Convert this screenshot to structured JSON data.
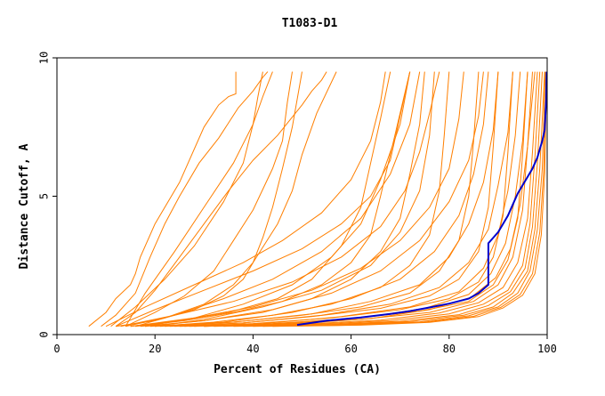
{
  "chart_data": {
    "type": "line",
    "title": "T1083-D1",
    "xlabel": "Percent of Residues (CA)",
    "ylabel": "Distance Cutoff, A",
    "xlim": [
      0,
      100
    ],
    "ylim": [
      0,
      10
    ],
    "x_ticks": [
      {
        "value": 0,
        "label": "0"
      },
      {
        "value": 20,
        "label": "20"
      },
      {
        "value": 40,
        "label": "40"
      },
      {
        "value": 60,
        "label": "60"
      },
      {
        "value": 80,
        "label": "80"
      },
      {
        "value": 100,
        "label": "100"
      }
    ],
    "y_ticks": [
      {
        "value": 0,
        "label": "0"
      },
      {
        "value": 5,
        "label": "5"
      },
      {
        "value": 10,
        "label": "10"
      }
    ],
    "grid": false,
    "colors": {
      "background_series": "#ff7f00",
      "highlight_series": "#0000cc",
      "axis": "#000000"
    },
    "series": [
      {
        "x": [
          6.5,
          10,
          12,
          15,
          16,
          17,
          20,
          25,
          30,
          33,
          35,
          36.5,
          36.5
        ],
        "y": [
          0.3,
          0.8,
          1.3,
          1.8,
          2.2,
          2.8,
          4.0,
          5.5,
          7.5,
          8.3,
          8.6,
          8.7,
          9.5
        ]
      },
      {
        "x": [
          9,
          12,
          16,
          19,
          22,
          25,
          29,
          33,
          37,
          40,
          42,
          43
        ],
        "y": [
          0.3,
          0.7,
          1.5,
          2.8,
          4.0,
          5.0,
          6.2,
          7.1,
          8.2,
          8.8,
          9.3,
          9.5
        ]
      },
      {
        "x": [
          12,
          16,
          20,
          25,
          30,
          35,
          40,
          45,
          50,
          52,
          54,
          55
        ],
        "y": [
          0.3,
          0.8,
          1.6,
          2.8,
          4.0,
          5.2,
          6.3,
          7.2,
          8.3,
          8.8,
          9.2,
          9.5
        ]
      },
      {
        "x": [
          14,
          20,
          26,
          32,
          36,
          40,
          44,
          46,
          47,
          48
        ],
        "y": [
          0.3,
          0.8,
          1.4,
          2.3,
          3.4,
          4.5,
          6.0,
          7.0,
          8.4,
          9.5
        ]
      },
      {
        "x": [
          12,
          20,
          28,
          34,
          38,
          40,
          42,
          44,
          46,
          48,
          50
        ],
        "y": [
          0.3,
          0.5,
          0.9,
          1.4,
          2.0,
          2.6,
          3.5,
          4.6,
          6.0,
          7.5,
          9.5
        ]
      },
      {
        "x": [
          14,
          22,
          30,
          36,
          40,
          45,
          48,
          50,
          53,
          57
        ],
        "y": [
          0.3,
          0.6,
          1.1,
          1.8,
          2.6,
          4.0,
          5.2,
          6.5,
          8.0,
          9.5
        ]
      },
      {
        "x": [
          15,
          25,
          35,
          45,
          52,
          58,
          62,
          64,
          66,
          68
        ],
        "y": [
          0.3,
          0.5,
          0.8,
          1.3,
          2.0,
          3.2,
          4.6,
          6.2,
          7.8,
          9.5
        ]
      },
      {
        "x": [
          16,
          26,
          36,
          46,
          54,
          60,
          64,
          66,
          68,
          70,
          72
        ],
        "y": [
          0.3,
          0.5,
          0.8,
          1.2,
          1.8,
          2.6,
          3.6,
          5.0,
          6.5,
          8.0,
          9.5
        ]
      },
      {
        "x": [
          18,
          30,
          42,
          52,
          60,
          66,
          70,
          72,
          74,
          75
        ],
        "y": [
          0.3,
          0.5,
          0.8,
          1.3,
          2.0,
          3.0,
          4.2,
          5.8,
          7.6,
          9.5
        ]
      },
      {
        "x": [
          20,
          32,
          44,
          56,
          66,
          72,
          76,
          78,
          79,
          80
        ],
        "y": [
          0.3,
          0.45,
          0.7,
          1.1,
          1.7,
          2.5,
          3.6,
          5.2,
          7.2,
          9.5
        ]
      },
      {
        "x": [
          22,
          36,
          50,
          62,
          72,
          78,
          82,
          84,
          85,
          86
        ],
        "y": [
          0.3,
          0.45,
          0.7,
          1.0,
          1.5,
          2.3,
          3.4,
          5.0,
          7.0,
          9.5
        ]
      },
      {
        "x": [
          24,
          38,
          52,
          66,
          76,
          82,
          86,
          88,
          89,
          90
        ],
        "y": [
          0.3,
          0.42,
          0.65,
          0.95,
          1.4,
          2.0,
          3.0,
          4.6,
          6.8,
          9.5
        ]
      },
      {
        "x": [
          26,
          40,
          56,
          70,
          80,
          86,
          89,
          91,
          92,
          93
        ],
        "y": [
          0.3,
          0.4,
          0.6,
          0.9,
          1.3,
          1.9,
          2.8,
          4.3,
          6.6,
          9.5
        ]
      },
      {
        "x": [
          28,
          44,
          60,
          74,
          84,
          89,
          92,
          94,
          95,
          96
        ],
        "y": [
          0.3,
          0.4,
          0.58,
          0.85,
          1.2,
          1.8,
          2.7,
          4.2,
          6.5,
          9.5
        ]
      },
      {
        "x": [
          30,
          46,
          62,
          76,
          85,
          90,
          93,
          95,
          96,
          97
        ],
        "y": [
          0.3,
          0.38,
          0.55,
          0.8,
          1.2,
          1.8,
          2.8,
          4.5,
          6.8,
          9.5
        ]
      },
      {
        "x": [
          32,
          50,
          66,
          78,
          86,
          91,
          94,
          96,
          97,
          98
        ],
        "y": [
          0.3,
          0.38,
          0.52,
          0.78,
          1.15,
          1.7,
          2.6,
          4.2,
          6.6,
          9.5
        ]
      },
      {
        "x": [
          34,
          52,
          68,
          80,
          87,
          92,
          95,
          96.5,
          97.5,
          98.5
        ],
        "y": [
          0.3,
          0.37,
          0.5,
          0.75,
          1.1,
          1.6,
          2.5,
          4.0,
          6.4,
          9.5
        ]
      },
      {
        "x": [
          36,
          54,
          70,
          82,
          88,
          92.5,
          95.5,
          97,
          98,
          99
        ],
        "y": [
          0.3,
          0.36,
          0.48,
          0.72,
          1.05,
          1.55,
          2.4,
          3.9,
          6.2,
          9.5
        ]
      },
      {
        "x": [
          38,
          56,
          72,
          83,
          89,
          93,
          96,
          97.5,
          98.5,
          99.5
        ],
        "y": [
          0.3,
          0.35,
          0.47,
          0.7,
          1.0,
          1.5,
          2.3,
          3.8,
          6.0,
          9.5
        ]
      },
      {
        "x": [
          40,
          58,
          74,
          84,
          90,
          94,
          96.5,
          98,
          99,
          99.6
        ],
        "y": [
          0.3,
          0.35,
          0.46,
          0.68,
          1.0,
          1.5,
          2.3,
          3.8,
          6.0,
          9.5
        ]
      },
      {
        "x": [
          42,
          60,
          75,
          85,
          90.5,
          94.5,
          97,
          98.5,
          99.3,
          99.8
        ],
        "y": [
          0.3,
          0.34,
          0.45,
          0.66,
          0.98,
          1.45,
          2.2,
          3.7,
          5.9,
          9.5
        ]
      },
      {
        "x": [
          44,
          62,
          76,
          86,
          91,
          95,
          97.5,
          98.8,
          99.5,
          99.9
        ],
        "y": [
          0.3,
          0.34,
          0.44,
          0.65,
          0.96,
          1.42,
          2.2,
          3.6,
          5.8,
          9.5
        ]
      },
      {
        "x": [
          15,
          28,
          40,
          52,
          62,
          70,
          76,
          80,
          82,
          83
        ],
        "y": [
          0.3,
          0.6,
          1.0,
          1.6,
          2.4,
          3.4,
          4.6,
          6.0,
          7.8,
          9.5
        ]
      },
      {
        "x": [
          13,
          24,
          36,
          48,
          58,
          66,
          71,
          74,
          76,
          78
        ],
        "y": [
          0.3,
          0.7,
          1.2,
          1.9,
          2.8,
          3.9,
          5.2,
          6.6,
          8.0,
          9.5
        ]
      },
      {
        "x": [
          10,
          18,
          28,
          38,
          46,
          54,
          60,
          64,
          66,
          67
        ],
        "y": [
          0.3,
          1.0,
          1.8,
          2.6,
          3.4,
          4.4,
          5.6,
          7.0,
          8.4,
          9.5
        ]
      },
      {
        "x": [
          12,
          20,
          30,
          40,
          50,
          58,
          64,
          68,
          70,
          72
        ],
        "y": [
          0.3,
          0.9,
          1.6,
          2.3,
          3.1,
          4.0,
          5.0,
          6.3,
          7.9,
          9.5
        ]
      },
      {
        "x": [
          17,
          30,
          44,
          56,
          66,
          74,
          80,
          84,
          86,
          87
        ],
        "y": [
          0.3,
          0.5,
          0.9,
          1.5,
          2.3,
          3.4,
          4.8,
          6.3,
          7.9,
          9.5
        ]
      },
      {
        "x": [
          19,
          34,
          48,
          60,
          70,
          77,
          82,
          85,
          87,
          88
        ],
        "y": [
          0.3,
          0.45,
          0.8,
          1.3,
          2.0,
          3.0,
          4.3,
          5.8,
          7.6,
          9.5
        ]
      },
      {
        "x": [
          21,
          36,
          52,
          64,
          74,
          80,
          84,
          87,
          89,
          90
        ],
        "y": [
          0.3,
          0.45,
          0.75,
          1.2,
          1.8,
          2.8,
          4.0,
          5.5,
          7.4,
          9.5
        ]
      },
      {
        "x": [
          23,
          38,
          54,
          68,
          78,
          84,
          88,
          90,
          92,
          93
        ],
        "y": [
          0.3,
          0.42,
          0.7,
          1.1,
          1.7,
          2.6,
          3.8,
          5.4,
          7.3,
          9.5
        ]
      },
      {
        "x": [
          25,
          42,
          58,
          72,
          82,
          87,
          90,
          92,
          93.5,
          94.5
        ],
        "y": [
          0.3,
          0.4,
          0.65,
          1.0,
          1.55,
          2.4,
          3.6,
          5.2,
          7.2,
          9.5
        ]
      },
      {
        "x": [
          27,
          46,
          62,
          75,
          84,
          88.5,
          91.5,
          93.5,
          95,
          96
        ],
        "y": [
          0.3,
          0.4,
          0.6,
          0.95,
          1.45,
          2.2,
          3.3,
          5.0,
          7.0,
          9.5
        ]
      },
      {
        "x": [
          30,
          48,
          64,
          76,
          84.5,
          89.5,
          92.5,
          94.5,
          96,
          97.5
        ],
        "y": [
          0.3,
          0.38,
          0.58,
          0.9,
          1.35,
          2.05,
          3.1,
          4.7,
          6.8,
          9.5
        ]
      },
      {
        "x": [
          14,
          18,
          24,
          30,
          36,
          40,
          42,
          44
        ],
        "y": [
          0.3,
          1.5,
          3.0,
          4.6,
          6.2,
          7.6,
          8.6,
          9.5
        ]
      },
      {
        "x": [
          11,
          16,
          22,
          28,
          34,
          38,
          40,
          41,
          42
        ],
        "y": [
          0.3,
          1.0,
          2.0,
          3.2,
          4.8,
          6.2,
          7.6,
          8.6,
          9.5
        ]
      },
      {
        "x": [
          16,
          24,
          34,
          44,
          54,
          62,
          68,
          72,
          74
        ],
        "y": [
          0.3,
          0.7,
          1.3,
          2.0,
          3.0,
          4.2,
          5.8,
          7.6,
          9.5
        ]
      },
      {
        "x": [
          18,
          28,
          38,
          48,
          56,
          62,
          66,
          70,
          72
        ],
        "y": [
          0.3,
          0.6,
          1.1,
          1.8,
          2.8,
          4.0,
          5.6,
          7.6,
          9.5
        ]
      },
      {
        "x": [
          20,
          30,
          42,
          54,
          64,
          70,
          74,
          76,
          77
        ],
        "y": [
          0.3,
          0.55,
          1.0,
          1.6,
          2.5,
          3.7,
          5.2,
          7.2,
          9.5
        ]
      },
      {
        "x": [
          49,
          55,
          62,
          68,
          72,
          76,
          80,
          84,
          86,
          88,
          88,
          89,
          90,
          91,
          92,
          93,
          94,
          95,
          96,
          97,
          98,
          98.5,
          99,
          99.5,
          99.8,
          99.9
        ],
        "y": [
          0.35,
          0.5,
          0.62,
          0.75,
          0.85,
          0.98,
          1.12,
          1.3,
          1.5,
          1.8,
          3.3,
          3.5,
          3.7,
          4.0,
          4.3,
          4.7,
          5.1,
          5.4,
          5.7,
          6.0,
          6.4,
          6.7,
          7.0,
          7.4,
          8.5,
          9.5
        ],
        "highlight": true
      }
    ]
  }
}
